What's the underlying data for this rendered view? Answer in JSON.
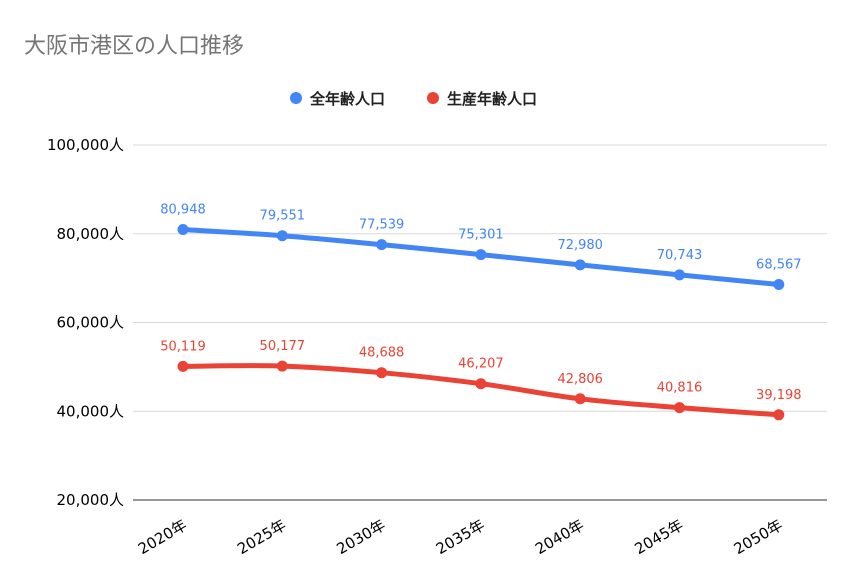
{
  "chart_data": {
    "type": "line",
    "title": "大阪市港区の人口推移",
    "categories": [
      "2020年",
      "2025年",
      "2030年",
      "2035年",
      "2040年",
      "2045年",
      "2050年"
    ],
    "series": [
      {
        "name": "全年齢人口",
        "color": "#4285f4",
        "values": [
          80948,
          79551,
          77539,
          75301,
          72980,
          70743,
          68567
        ],
        "labels": [
          "80,948",
          "79,551",
          "77,539",
          "75,301",
          "72,980",
          "70,743",
          "68,567"
        ]
      },
      {
        "name": "生産年齢人口",
        "color": "#ea4335",
        "values": [
          50119,
          50177,
          48688,
          46207,
          42806,
          40816,
          39198
        ],
        "labels": [
          "50,119",
          "50,177",
          "48,688",
          "46,207",
          "42,806",
          "40,816",
          "39,198"
        ]
      }
    ],
    "yticks": [
      20000,
      40000,
      60000,
      80000,
      100000
    ],
    "ytick_labels": [
      "20,000人",
      "40,000人",
      "60,000人",
      "80,000人",
      "100,000人"
    ],
    "ylim": [
      20000,
      100000
    ],
    "grid": true,
    "legend_position": "top"
  }
}
